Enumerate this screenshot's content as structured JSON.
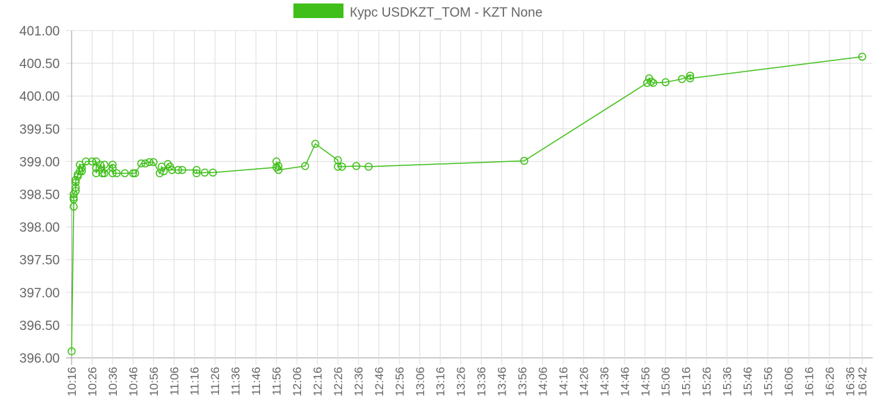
{
  "chart_data": {
    "type": "line",
    "x": [
      "10:16",
      "10:17",
      "10:17",
      "10:17",
      "10:17",
      "10:18",
      "10:18",
      "10:18",
      "10:18",
      "10:19",
      "10:19",
      "10:20",
      "10:20",
      "10:21",
      "10:21",
      "10:23",
      "10:26",
      "10:28",
      "10:28",
      "10:28",
      "10:30",
      "10:31",
      "10:32",
      "10:32",
      "10:36",
      "10:36",
      "10:36",
      "10:38",
      "10:42",
      "10:46",
      "10:47",
      "10:50",
      "10:52",
      "10:54",
      "10:56",
      "10:59",
      "11:00",
      "11:01",
      "11:03",
      "11:04",
      "11:05",
      "11:08",
      "11:10",
      "11:17",
      "11:17",
      "11:21",
      "11:25",
      "11:56",
      "11:56",
      "11:57",
      "11:57",
      "12:10",
      "12:15",
      "12:26",
      "12:26",
      "12:28",
      "12:35",
      "12:41",
      "13:57",
      "14:57",
      "14:58",
      "14:59",
      "15:00",
      "15:06",
      "15:14",
      "15:18",
      "15:18",
      "16:42"
    ],
    "series": [
      {
        "name": "Курс USDKZT_TOM - KZT None",
        "color": "#40bf1a",
        "values": [
          396.1,
          398.31,
          398.42,
          398.45,
          398.5,
          398.55,
          398.6,
          398.68,
          398.72,
          398.77,
          398.8,
          398.85,
          398.95,
          398.9,
          398.85,
          399.0,
          399.0,
          399.0,
          398.9,
          398.82,
          398.95,
          398.82,
          398.95,
          398.82,
          398.95,
          398.9,
          398.82,
          398.82,
          398.82,
          398.82,
          398.82,
          398.97,
          398.97,
          398.99,
          398.99,
          398.82,
          398.92,
          398.85,
          398.96,
          398.92,
          398.87,
          398.87,
          398.87,
          398.87,
          398.82,
          398.83,
          398.83,
          398.91,
          399.0,
          398.93,
          398.87,
          398.93,
          399.27,
          399.02,
          398.92,
          398.92,
          398.93,
          398.92,
          399.01,
          400.2,
          400.27,
          400.22,
          400.2,
          400.21,
          400.26,
          400.31,
          400.27,
          400.6
        ]
      }
    ],
    "xlim": [
      "10:16",
      "16:42"
    ],
    "xticks": [
      "10:16",
      "10:26",
      "10:36",
      "10:46",
      "10:56",
      "11:06",
      "11:16",
      "11:26",
      "11:36",
      "11:46",
      "11:56",
      "12:06",
      "12:16",
      "12:26",
      "12:36",
      "12:46",
      "12:56",
      "13:06",
      "13:16",
      "13:26",
      "13:36",
      "13:46",
      "13:56",
      "14:06",
      "14:16",
      "14:26",
      "14:36",
      "14:46",
      "14:56",
      "15:06",
      "15:16",
      "15:26",
      "15:36",
      "15:46",
      "15:56",
      "16:06",
      "16:16",
      "16:26",
      "16:36",
      "16:42"
    ],
    "ylim": [
      396,
      401
    ],
    "yticks": [
      {
        "value": 396,
        "label": "396.00"
      },
      {
        "value": 396.5,
        "label": "396.50"
      },
      {
        "value": 397,
        "label": "397.00"
      },
      {
        "value": 397.5,
        "label": "397.50"
      },
      {
        "value": 398,
        "label": "398.00"
      },
      {
        "value": 398.5,
        "label": "398.50"
      },
      {
        "value": 399,
        "label": "399.00"
      },
      {
        "value": 399.5,
        "label": "399.50"
      },
      {
        "value": 400,
        "label": "400.00"
      },
      {
        "value": 400.5,
        "label": "400.50"
      },
      {
        "value": 401,
        "label": "401.00"
      }
    ],
    "grid": true,
    "legend": "top"
  }
}
